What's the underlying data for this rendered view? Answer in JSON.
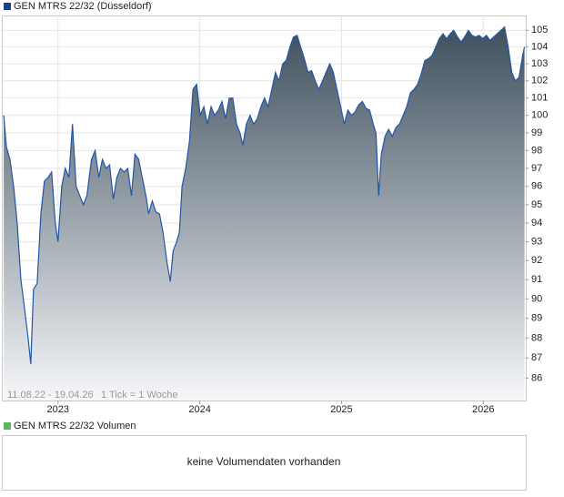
{
  "chart_data": {
    "type": "area",
    "title": "GEN MTRS 22/32 (Düsseldorf)",
    "range_label": "11.08.22 - 19.04.26",
    "tick_label": "1 Tick = 1 Woche",
    "volume_title": "GEN MTRS 22/32 Volumen",
    "volume_note": "keine Volumendaten vorhanden",
    "log_y": true,
    "grid": true,
    "fill_top": "#3f505e",
    "fill_bottom": "#f6f7f9",
    "legend_color": "#1f3d8f",
    "volume_color": "#5cb85c",
    "x": [
      2022.617,
      2022.636,
      2022.661,
      2022.687,
      2022.712,
      2022.738,
      2022.764,
      2022.789,
      2022.808,
      2022.827,
      2022.853,
      2022.879,
      2022.904,
      2022.93,
      2022.955,
      2022.981,
      2023.0,
      2023.026,
      2023.051,
      2023.077,
      2023.102,
      2023.128,
      2023.153,
      2023.179,
      2023.204,
      2023.236,
      2023.262,
      2023.288,
      2023.313,
      2023.339,
      2023.364,
      2023.39,
      2023.415,
      2023.441,
      2023.466,
      2023.492,
      2023.518,
      2023.543,
      2023.569,
      2023.594,
      2023.62,
      2023.639,
      2023.665,
      2023.69,
      2023.716,
      2023.741,
      2023.767,
      2023.792,
      2023.812,
      2023.837,
      2023.856,
      2023.875,
      2023.901,
      2023.927,
      2023.952,
      2023.978,
      2024.003,
      2024.029,
      2024.054,
      2024.08,
      2024.105,
      2024.131,
      2024.157,
      2024.182,
      2024.208,
      2024.233,
      2024.259,
      2024.284,
      2024.304,
      2024.329,
      2024.355,
      2024.38,
      2024.406,
      2024.431,
      2024.457,
      2024.482,
      2024.508,
      2024.534,
      2024.559,
      2024.585,
      2024.61,
      2024.636,
      2024.661,
      2024.687,
      2024.712,
      2024.738,
      2024.764,
      2024.789,
      2024.815,
      2024.84,
      2024.866,
      2024.891,
      2024.917,
      2024.942,
      2024.968,
      2024.994,
      2025.019,
      2025.045,
      2025.07,
      2025.096,
      2025.121,
      2025.147,
      2025.173,
      2025.198,
      2025.224,
      2025.243,
      2025.262,
      2025.281,
      2025.307,
      2025.332,
      2025.358,
      2025.383,
      2025.409,
      2025.435,
      2025.46,
      2025.486,
      2025.511,
      2025.537,
      2025.562,
      2025.588,
      2025.613,
      2025.639,
      2025.665,
      2025.69,
      2025.716,
      2025.741,
      2025.767,
      2025.792,
      2025.818,
      2025.843,
      2025.869,
      2025.895,
      2025.92,
      2025.946,
      2025.971,
      2025.997,
      2026.022,
      2026.048,
      2026.073,
      2026.099,
      2026.125,
      2026.15,
      2026.176,
      2026.201,
      2026.227,
      2026.252,
      2026.278,
      2026.291
    ],
    "series": [
      {
        "name": "GEN MTRS 22/32",
        "color": "#2255aa",
        "values": [
          100,
          98.2,
          97.5,
          96,
          94,
          91,
          89.5,
          88,
          86.7,
          90.5,
          90.8,
          94.5,
          96.3,
          96.5,
          96.8,
          94,
          93,
          96,
          97,
          96.5,
          99.5,
          96,
          95.5,
          95,
          95.5,
          97.5,
          98,
          96.5,
          97.5,
          97,
          97.2,
          95.3,
          96.5,
          97,
          96.8,
          97,
          95.5,
          97.8,
          97.5,
          96.5,
          95.5,
          94.5,
          95.2,
          94.6,
          94.5,
          93.5,
          92,
          90.9,
          92.5,
          93,
          93.5,
          96,
          97,
          98.5,
          101.5,
          101.8,
          100,
          100.5,
          99.5,
          100.5,
          100,
          100.3,
          100.8,
          99.8,
          101,
          101,
          99.5,
          99,
          98.3,
          99.5,
          100,
          99.5,
          99.8,
          100.5,
          101,
          100.5,
          101.5,
          102.5,
          102,
          103,
          103.2,
          104,
          104.6,
          104.7,
          104,
          103.3,
          102.5,
          102.6,
          102,
          101.5,
          102,
          102.5,
          103,
          102.5,
          101.5,
          100.5,
          99.5,
          100.3,
          100,
          100.2,
          100.6,
          100.8,
          100.4,
          100.3,
          99.5,
          99,
          95.5,
          97.8,
          98.8,
          99.2,
          98.8,
          99.3,
          99.5,
          100,
          100.5,
          101.3,
          101.5,
          101.8,
          102.4,
          103.2,
          103.3,
          103.5,
          104,
          104.5,
          104.8,
          104.5,
          104.8,
          105,
          104.6,
          104.3,
          104.6,
          105,
          104.7,
          104.6,
          104.7,
          104.5,
          104.7,
          104.4,
          104.6,
          104.8,
          105,
          105.2,
          104,
          102.5,
          102,
          102.2,
          103.5,
          104
        ]
      }
    ],
    "xlim": [
      2022.61,
      2026.3
    ],
    "xticks": [
      2023,
      2024,
      2025,
      2026
    ],
    "ylim": [
      84.9,
      105.9
    ],
    "yticks": [
      86,
      87,
      88,
      89,
      90,
      91,
      92,
      93,
      94,
      95,
      96,
      97,
      98,
      99,
      100,
      101,
      102,
      103,
      104,
      105
    ]
  }
}
